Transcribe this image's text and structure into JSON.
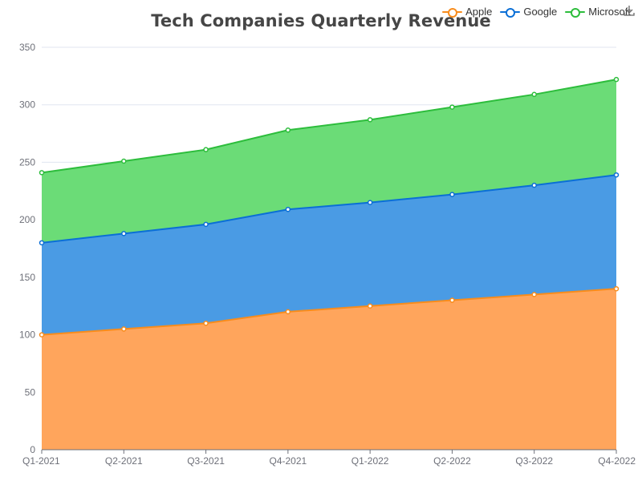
{
  "chart_data": {
    "type": "area",
    "stacked": true,
    "title": "Tech Companies Quarterly Revenue",
    "xlabel": "",
    "ylabel": "",
    "categories": [
      "Q1-2021",
      "Q2-2021",
      "Q3-2021",
      "Q4-2021",
      "Q1-2022",
      "Q2-2022",
      "Q3-2022",
      "Q4-2022"
    ],
    "series": [
      {
        "name": "Apple",
        "color": "#f88c1c",
        "fill": "#ffa55c",
        "values": [
          100,
          105,
          110,
          120,
          125,
          130,
          135,
          140
        ]
      },
      {
        "name": "Google",
        "color": "#0b6fd6",
        "fill": "#4a9be4",
        "values": [
          80,
          83,
          86,
          89,
          90,
          92,
          95,
          99
        ]
      },
      {
        "name": "Microsoft",
        "color": "#2dbd3c",
        "fill": "#6bdc77",
        "values": [
          61,
          63,
          65,
          69,
          72,
          76,
          79,
          83
        ]
      }
    ],
    "ylim": [
      0,
      350
    ],
    "yticks": [
      0,
      50,
      100,
      150,
      200,
      250,
      300,
      350
    ],
    "grid": true,
    "legend_position": "top-right"
  },
  "icons": {
    "download": "download-icon"
  }
}
